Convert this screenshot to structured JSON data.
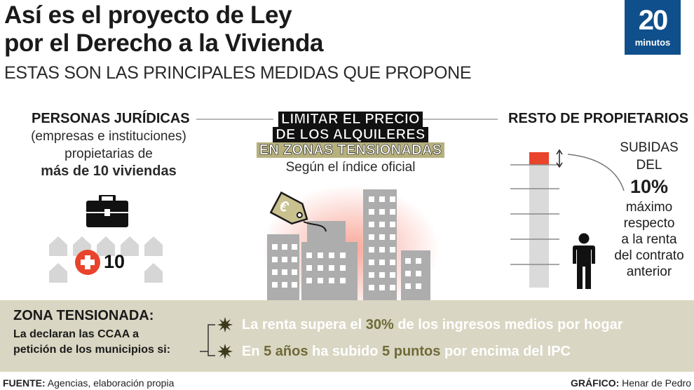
{
  "header": {
    "title_line1": "Así es el proyecto de Ley",
    "title_line2": "por el Derecho a la Vivienda",
    "subtitle": "ESTAS SON LAS PRINCIPALES MEDIDAS QUE PROPONE"
  },
  "logo": {
    "number": "20",
    "word": "minutos",
    "color": "#0f4f8b"
  },
  "left": {
    "heading": "PERSONAS JURÍDICAS",
    "line1": "(empresas e instituciones)",
    "line2": "propietarias de",
    "line3": "más de 10 viviendas",
    "icon": "briefcase-icon",
    "badge_text": "10"
  },
  "center": {
    "banner_line1": "LIMITAR EL PRECIO",
    "banner_line2": "DE LOS ALQUILERES",
    "banner_line3": "EN ZONAS TENSIONADAS",
    "note": "Según el índice oficial",
    "tag_symbol": "€"
  },
  "right": {
    "heading": "RESTO DE PROPIETARIOS",
    "line1": "SUBIDAS",
    "line2": "DEL",
    "percent": "10%",
    "line3": "máximo",
    "line4": "respecto",
    "line5": "a la renta",
    "line6": "del contrato",
    "line7": "anterior",
    "increase_color": "#e8442b"
  },
  "zona": {
    "title": "ZONA TENSIONADA:",
    "desc_line1": "La declaran las CCAA a",
    "desc_line2": "petición de los municipios si:",
    "crit1_a": "La renta supera el ",
    "crit1_hl": "30%",
    "crit1_b": " de los ingresos medios por hogar",
    "crit2_a": "En ",
    "crit2_hl1": "5 años",
    "crit2_b": " ha subido ",
    "crit2_hl2": "5 puntos",
    "crit2_c": " por encima del IPC"
  },
  "footer": {
    "source_label": "FUENTE:",
    "source_text": " Agencias, elaboración propia",
    "graphic_label": "GRÁFICO:",
    "graphic_text": " Henar de Pedro"
  }
}
